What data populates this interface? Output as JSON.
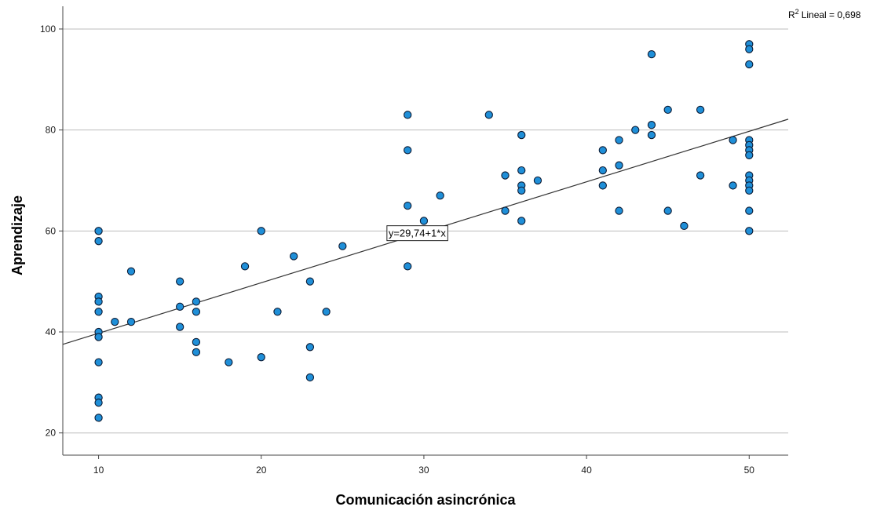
{
  "chart_data": {
    "type": "scatter",
    "title": "",
    "xlabel": "Comunicación asincrónica",
    "ylabel": "Aprendizaje",
    "xlim": [
      7.8,
      52.4
    ],
    "ylim": [
      15.6,
      104.5
    ],
    "x_ticks": [
      10,
      20,
      30,
      40,
      50
    ],
    "y_ticks": [
      20,
      40,
      60,
      80,
      100
    ],
    "grid": "horizontal",
    "r2_label": "Lineal = 0,698",
    "r2_prefix": "R",
    "r2_superscript": "2",
    "fit_equation": "y=29,74+1*x",
    "fit": {
      "intercept": 29.74,
      "slope": 1
    },
    "colors": {
      "point_fill": "#1f8fd8",
      "point_stroke": "#0b1a33",
      "grid": "#bdbdbd",
      "fit_line": "#333333"
    },
    "points": [
      [
        10,
        60
      ],
      [
        10,
        58
      ],
      [
        10,
        47
      ],
      [
        10,
        46
      ],
      [
        10,
        44
      ],
      [
        10,
        40
      ],
      [
        10,
        39
      ],
      [
        10,
        34
      ],
      [
        10,
        27
      ],
      [
        10,
        26
      ],
      [
        10,
        23
      ],
      [
        11,
        42
      ],
      [
        12,
        52
      ],
      [
        12,
        42
      ],
      [
        15,
        50
      ],
      [
        15,
        45
      ],
      [
        15,
        41
      ],
      [
        16,
        46
      ],
      [
        16,
        44
      ],
      [
        16,
        38
      ],
      [
        16,
        36
      ],
      [
        18,
        34
      ],
      [
        19,
        53
      ],
      [
        20,
        60
      ],
      [
        20,
        35
      ],
      [
        21,
        44
      ],
      [
        22,
        55
      ],
      [
        23,
        50
      ],
      [
        23,
        37
      ],
      [
        23,
        31
      ],
      [
        24,
        44
      ],
      [
        25,
        57
      ],
      [
        29,
        83
      ],
      [
        29,
        76
      ],
      [
        29,
        65
      ],
      [
        29,
        53
      ],
      [
        30,
        62
      ],
      [
        31,
        67
      ],
      [
        34,
        83
      ],
      [
        35,
        71
      ],
      [
        35,
        64
      ],
      [
        36,
        79
      ],
      [
        36,
        72
      ],
      [
        36,
        69
      ],
      [
        36,
        68
      ],
      [
        36,
        62
      ],
      [
        37,
        70
      ],
      [
        41,
        76
      ],
      [
        41,
        72
      ],
      [
        41,
        69
      ],
      [
        42,
        78
      ],
      [
        42,
        73
      ],
      [
        42,
        64
      ],
      [
        43,
        80
      ],
      [
        44,
        95
      ],
      [
        44,
        81
      ],
      [
        44,
        79
      ],
      [
        45,
        84
      ],
      [
        45,
        64
      ],
      [
        46,
        61
      ],
      [
        47,
        84
      ],
      [
        47,
        71
      ],
      [
        49,
        78
      ],
      [
        49,
        69
      ],
      [
        50,
        97
      ],
      [
        50,
        96
      ],
      [
        50,
        93
      ],
      [
        50,
        78
      ],
      [
        50,
        77
      ],
      [
        50,
        76
      ],
      [
        50,
        75
      ],
      [
        50,
        71
      ],
      [
        50,
        70
      ],
      [
        50,
        69
      ],
      [
        50,
        68
      ],
      [
        50,
        64
      ],
      [
        50,
        60
      ]
    ]
  }
}
